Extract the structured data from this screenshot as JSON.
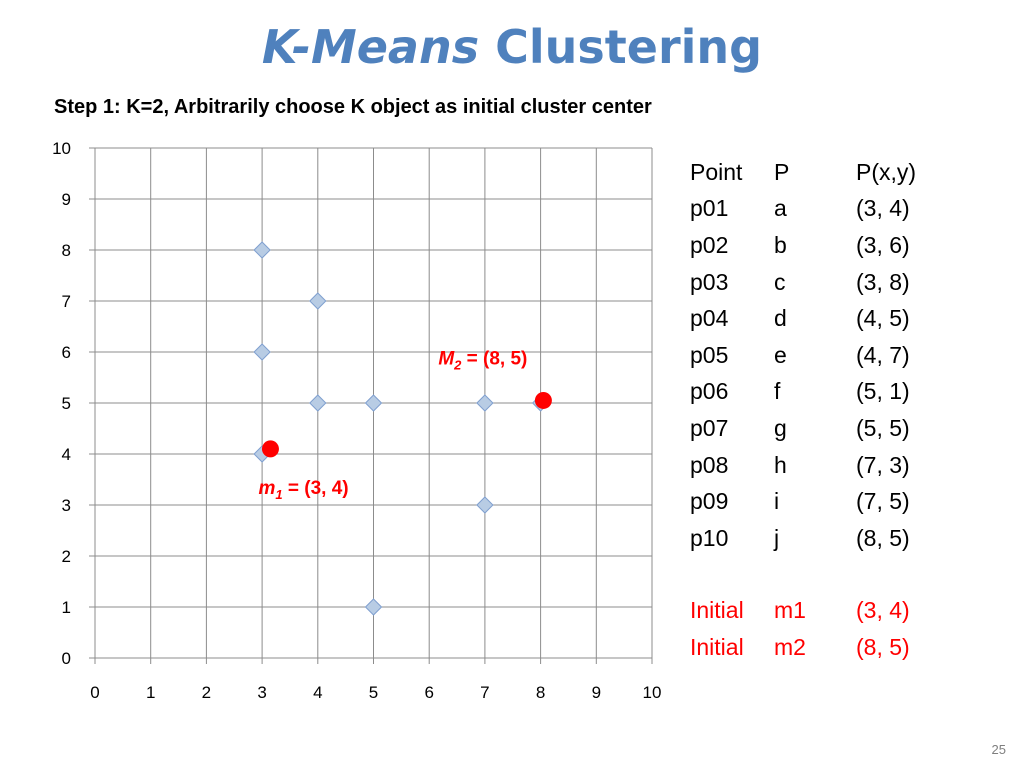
{
  "slide": {
    "title_italic": "K-Means",
    "title_rest": "Clustering",
    "subtitle": "Step 1: K=2, Arbitrarily choose K object as initial cluster center",
    "page_number": "25"
  },
  "chart_data": {
    "type": "scatter",
    "xlim": [
      0,
      10
    ],
    "ylim": [
      0,
      10
    ],
    "x_ticks": [
      0,
      1,
      2,
      3,
      4,
      5,
      6,
      7,
      8,
      9,
      10
    ],
    "y_ticks": [
      0,
      1,
      2,
      3,
      4,
      5,
      6,
      7,
      8,
      9,
      10
    ],
    "grid": true,
    "points": [
      {
        "x": 3,
        "y": 4
      },
      {
        "x": 3,
        "y": 6
      },
      {
        "x": 3,
        "y": 8
      },
      {
        "x": 4,
        "y": 5
      },
      {
        "x": 4,
        "y": 7
      },
      {
        "x": 5,
        "y": 1
      },
      {
        "x": 5,
        "y": 5
      },
      {
        "x": 7,
        "y": 3
      },
      {
        "x": 7,
        "y": 5
      },
      {
        "x": 8,
        "y": 5
      }
    ],
    "point_color": "#b8cce4",
    "point_edge_color": "#7f9fcf",
    "centers": [
      {
        "x": 3.15,
        "y": 4.1,
        "name": "m",
        "sub": "1",
        "rest": " = (3, 4)",
        "label_side": "below"
      },
      {
        "x": 8.05,
        "y": 5.05,
        "name": "M",
        "sub": "2",
        "rest": " = (8, 5)",
        "label_side": "left"
      }
    ],
    "center_color": "#ff0000"
  },
  "table": {
    "header": [
      "Point",
      "P",
      "P(x,y)"
    ],
    "rows": [
      [
        "p01",
        "a",
        "(3, 4)"
      ],
      [
        "p02",
        "b",
        "(3, 6)"
      ],
      [
        "p03",
        "c",
        "(3, 8)"
      ],
      [
        "p04",
        "d",
        "(4, 5)"
      ],
      [
        "p05",
        "e",
        "(4, 7)"
      ],
      [
        "p06",
        "f",
        "(5, 1)"
      ],
      [
        "p07",
        "g",
        "(5, 5)"
      ],
      [
        "p08",
        "h",
        "(7, 3)"
      ],
      [
        "p09",
        "i",
        "(7, 5)"
      ],
      [
        "p10",
        "j",
        "(8, 5)"
      ]
    ],
    "initial_rows": [
      [
        "Initial",
        "m1",
        "(3, 4)"
      ],
      [
        "Initial",
        "m2",
        "(8, 5)"
      ]
    ],
    "initial_color": "#ff0000"
  }
}
